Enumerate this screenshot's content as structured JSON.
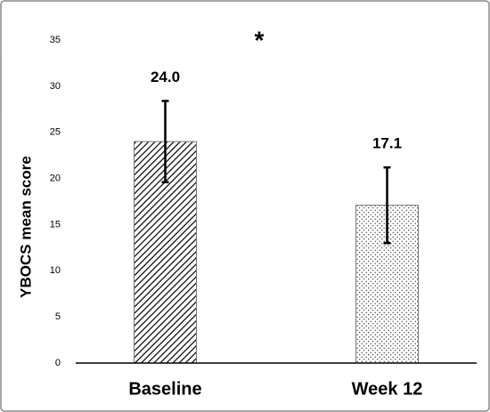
{
  "chart_data": {
    "type": "bar",
    "ylabel": "YBOCS mean score",
    "annotation": "*",
    "categories": [
      "Baseline",
      "Week 12"
    ],
    "values": [
      24.0,
      17.1
    ],
    "value_labels": [
      "24.0",
      "17.1"
    ],
    "errors": [
      4.4,
      4.1
    ],
    "colors": [
      "#5a6e87",
      "#8a8a8a"
    ],
    "patterns": [
      "hatch",
      "dots"
    ],
    "ylim": [
      0,
      35
    ],
    "yticks": [
      0,
      5,
      10,
      15,
      20,
      25,
      30,
      35
    ],
    "grid": false
  }
}
